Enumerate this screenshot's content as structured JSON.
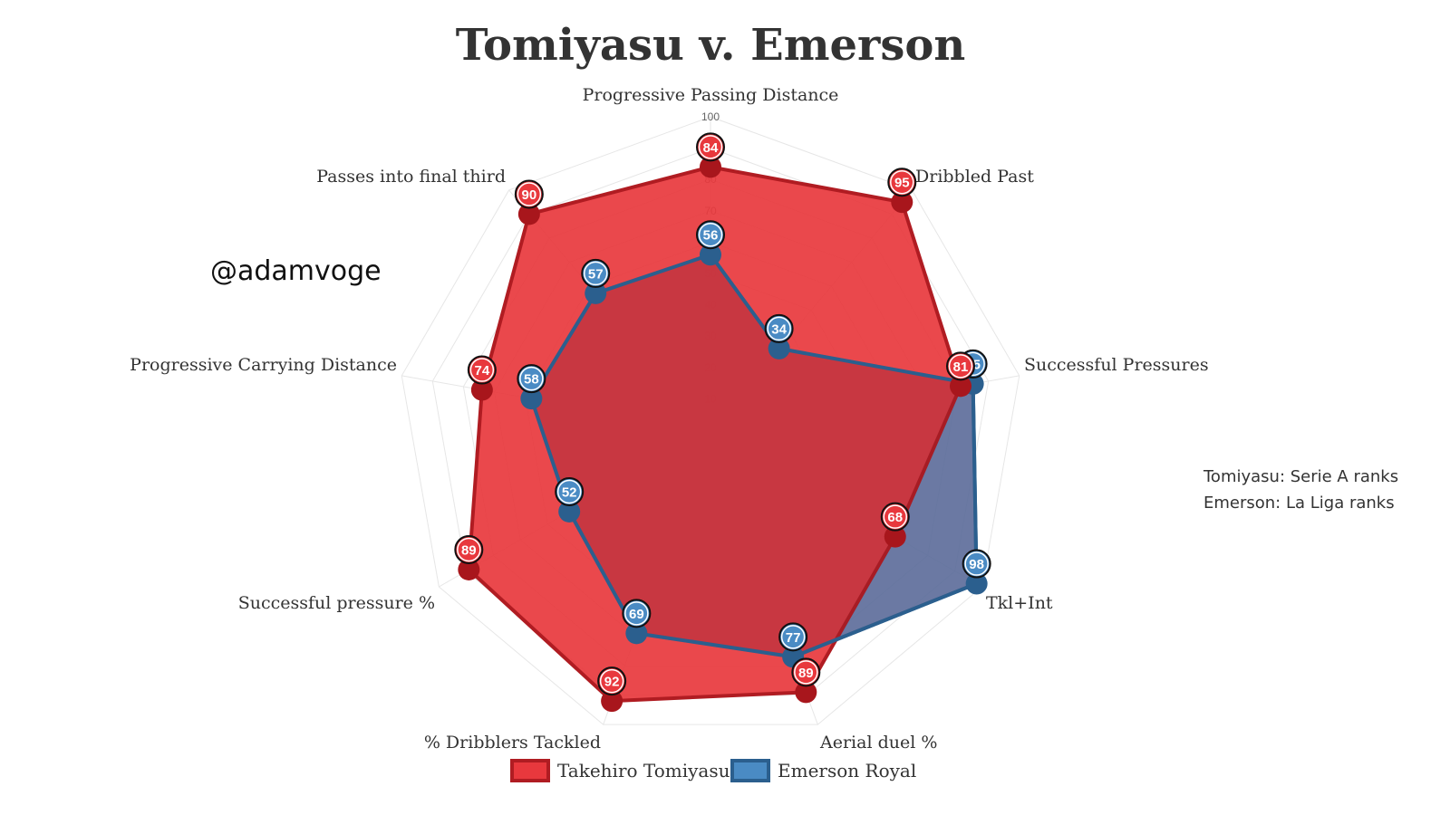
{
  "watermark": "@adamvoge",
  "notes": [
    "Tomiyasu: Serie A ranks",
    "Emerson: La Liga ranks"
  ],
  "colors": {
    "series1_fill": "#e8383d",
    "series1_stroke": "#b01c22",
    "series1_marker": "#a8161c",
    "series2_fill": "#4a8bc4",
    "series2_stroke": "#2b5f8e",
    "series2_marker": "#2b5f8e",
    "grid": "#e6e6e6"
  },
  "chart_data": {
    "type": "radar",
    "title": "Tomiyasu v. Emerson",
    "axes": [
      "Progressive Passing Distance",
      "Dribbled Past",
      "Successful Pressures",
      "Tkl+Int",
      "Aerial duel %",
      "% Dribblers Tackled",
      "Successful pressure %",
      "Progressive Carrying Distance",
      "Passes into final third"
    ],
    "range": [
      0,
      100
    ],
    "ticks": [
      10,
      20,
      30,
      40,
      50,
      60,
      70,
      80,
      90,
      100
    ],
    "grid": true,
    "legend_position": "bottom",
    "series": [
      {
        "name": "Takehiro Tomiyasu",
        "values": [
          84,
          95,
          81,
          68,
          89,
          92,
          89,
          74,
          90
        ]
      },
      {
        "name": "Emerson Royal",
        "values": [
          56,
          34,
          85,
          98,
          77,
          69,
          52,
          58,
          57
        ]
      }
    ]
  }
}
